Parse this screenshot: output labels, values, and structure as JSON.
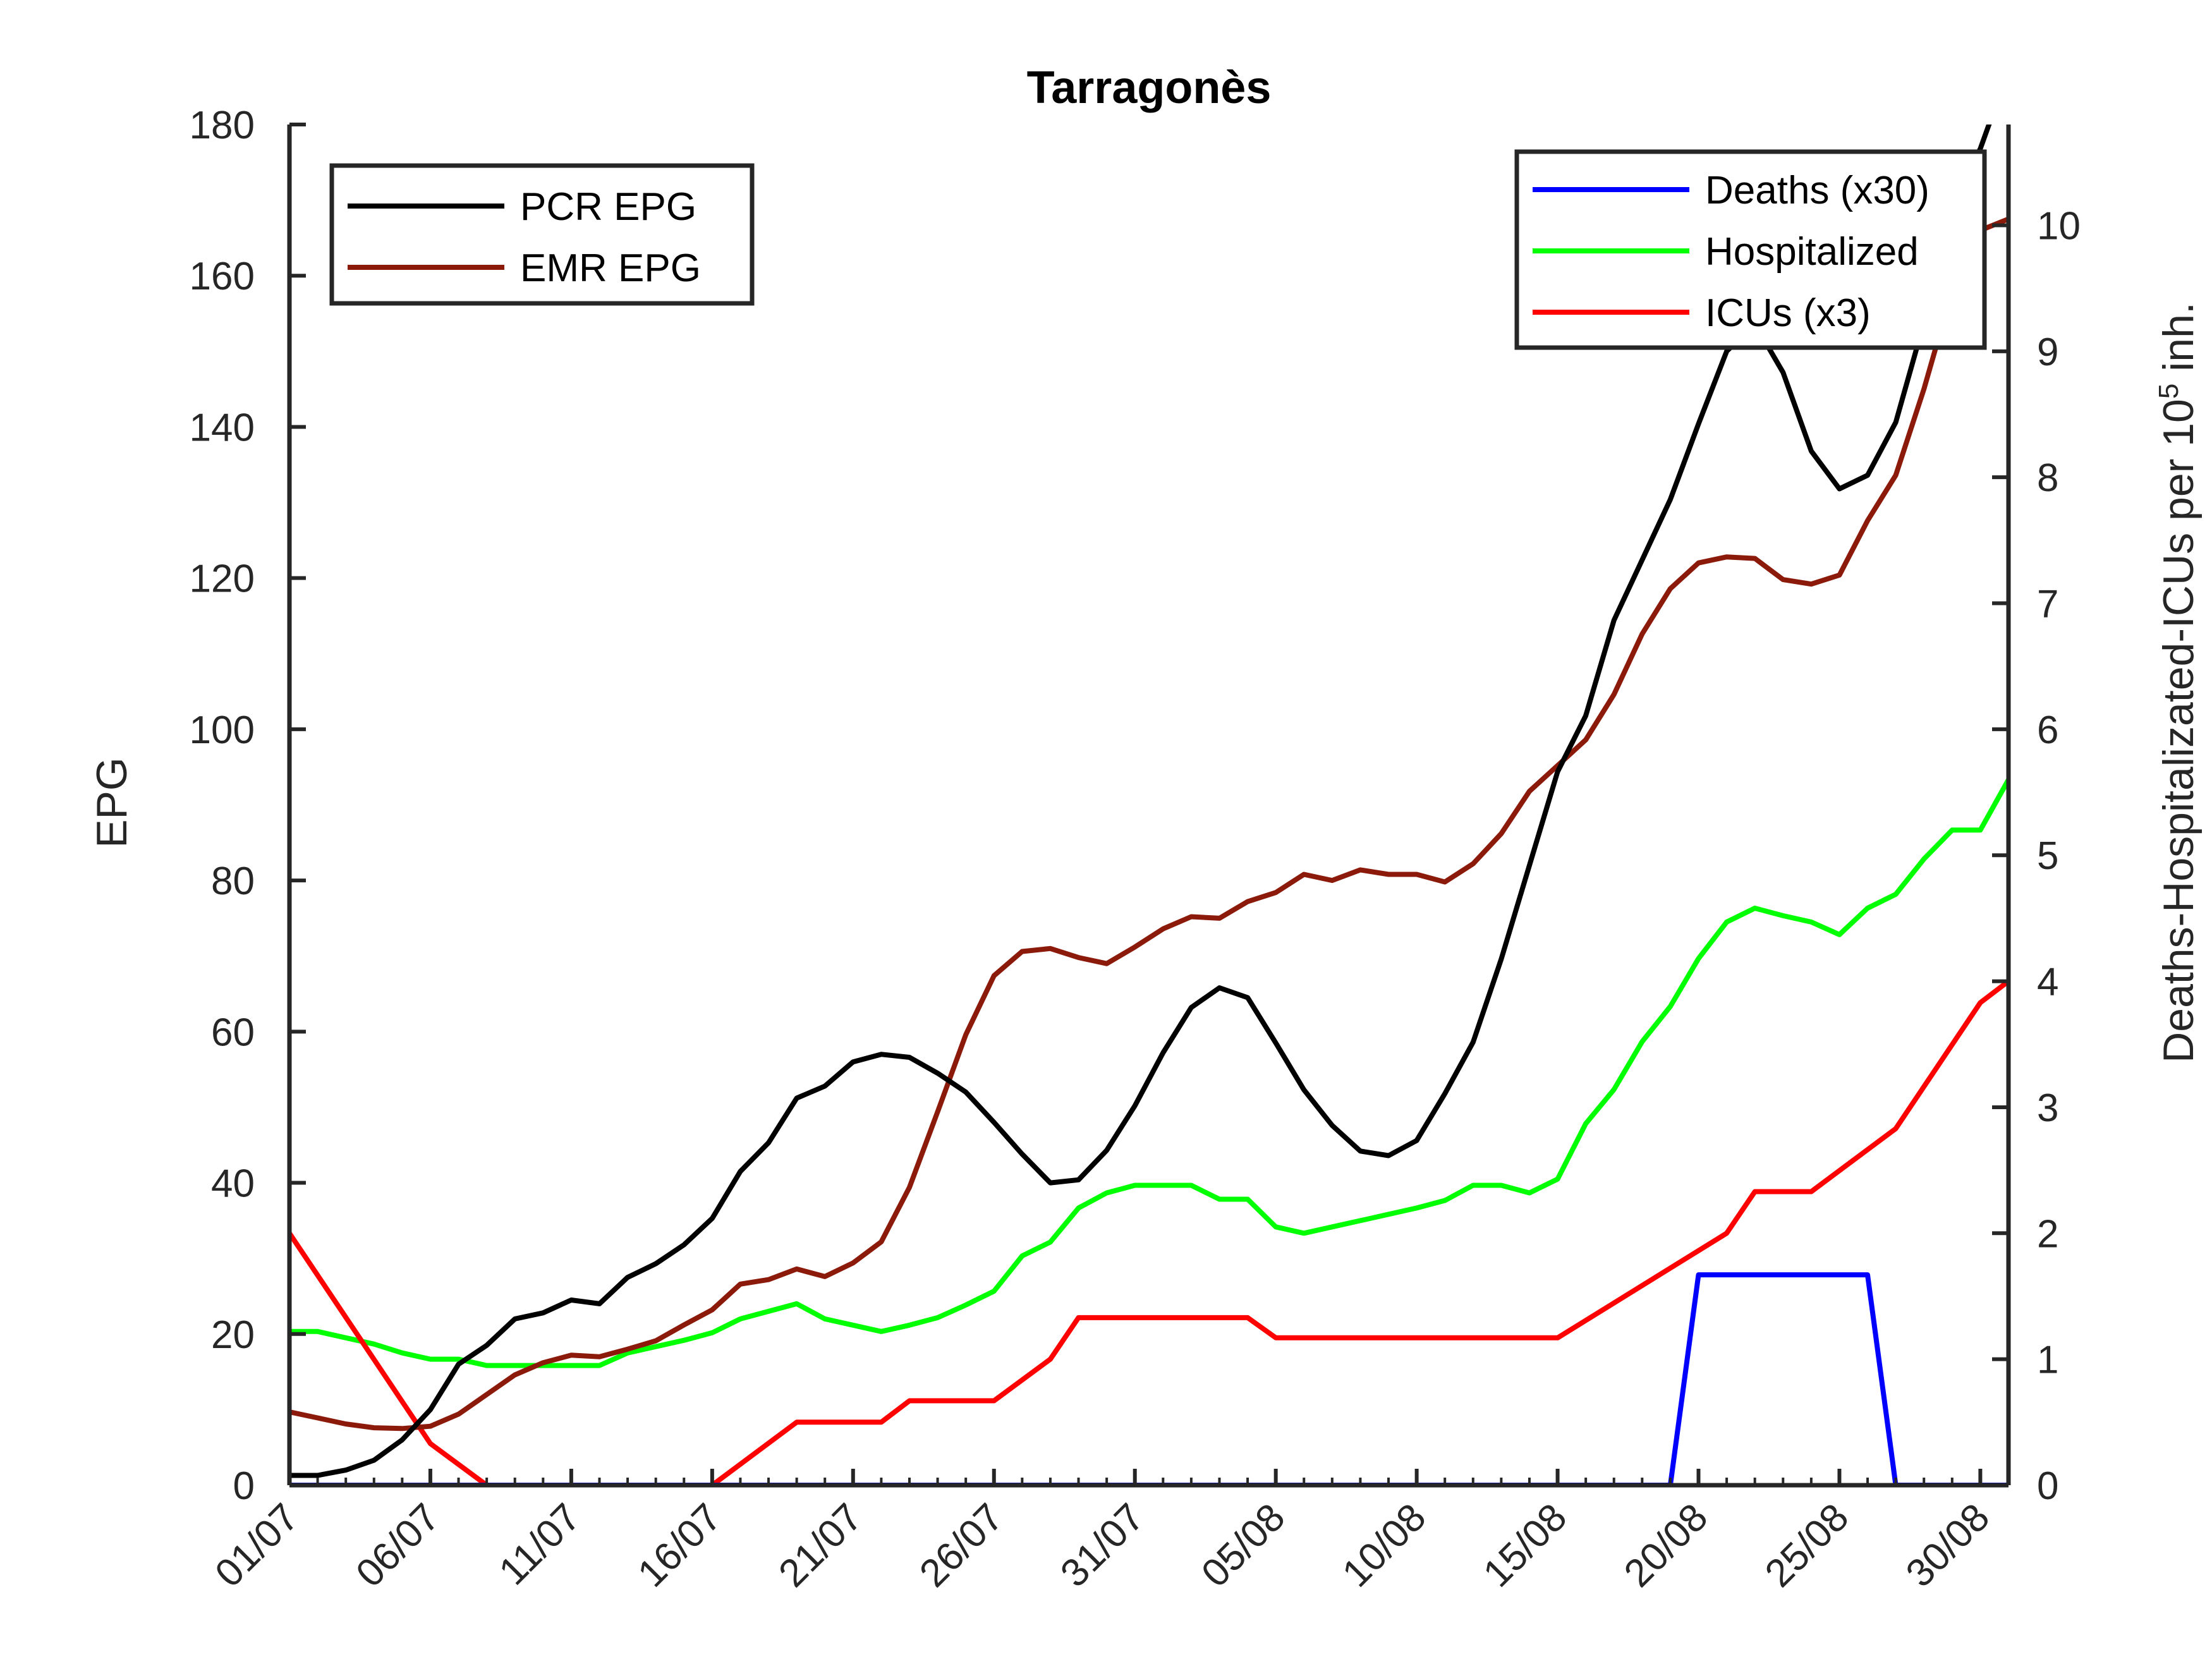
{
  "chart_data": {
    "type": "line",
    "title": "Tarragonès",
    "ylabel_left": "EPG",
    "ylabel_right_main": "Deaths-Hospitalizated-ICUs per 10",
    "ylabel_right_sup": "5",
    "ylabel_right_tail": " inh.",
    "ylim_left": [
      0,
      180
    ],
    "ylim_right": [
      0,
      10.8
    ],
    "yticks_left": [
      0,
      20,
      40,
      60,
      80,
      100,
      120,
      140,
      160,
      180
    ],
    "yticks_right": [
      0,
      1,
      2,
      3,
      4,
      5,
      6,
      7,
      8,
      9,
      10
    ],
    "xlim": [
      0,
      61
    ],
    "xticks": [
      {
        "x": 0,
        "label": "01/07"
      },
      {
        "x": 5,
        "label": "06/07"
      },
      {
        "x": 10,
        "label": "11/07"
      },
      {
        "x": 15,
        "label": "16/07"
      },
      {
        "x": 20,
        "label": "21/07"
      },
      {
        "x": 25,
        "label": "26/07"
      },
      {
        "x": 30,
        "label": "31/07"
      },
      {
        "x": 35,
        "label": "05/08"
      },
      {
        "x": 40,
        "label": "10/08"
      },
      {
        "x": 45,
        "label": "15/08"
      },
      {
        "x": 50,
        "label": "20/08"
      },
      {
        "x": 55,
        "label": "25/08"
      },
      {
        "x": 60,
        "label": "30/08"
      }
    ],
    "series": [
      {
        "name": "PCR EPG",
        "axis": "left",
        "color": "#000000",
        "points": [
          [
            0,
            1.3
          ],
          [
            1,
            1.3
          ],
          [
            2,
            2.0
          ],
          [
            3,
            3.3
          ],
          [
            4,
            6.0
          ],
          [
            5,
            10.0
          ],
          [
            6,
            16.0
          ],
          [
            7,
            18.5
          ],
          [
            8,
            22.0
          ],
          [
            9,
            22.8
          ],
          [
            10,
            24.5
          ],
          [
            11,
            24.0
          ],
          [
            12,
            27.5
          ],
          [
            13,
            29.3
          ],
          [
            14,
            31.8
          ],
          [
            15,
            35.3
          ],
          [
            16,
            41.5
          ],
          [
            17,
            45.3
          ],
          [
            18,
            51.2
          ],
          [
            19,
            52.8
          ],
          [
            20,
            56.0
          ],
          [
            21,
            57.0
          ],
          [
            22,
            56.6
          ],
          [
            23,
            54.5
          ],
          [
            24,
            52.0
          ],
          [
            25,
            48.0
          ],
          [
            26,
            43.8
          ],
          [
            27,
            40.0
          ],
          [
            28,
            40.4
          ],
          [
            29,
            44.3
          ],
          [
            30,
            50.2
          ],
          [
            31,
            57.2
          ],
          [
            32,
            63.2
          ],
          [
            33,
            65.8
          ],
          [
            34,
            64.5
          ],
          [
            35,
            58.5
          ],
          [
            36,
            52.3
          ],
          [
            37,
            47.6
          ],
          [
            38,
            44.2
          ],
          [
            39,
            43.6
          ],
          [
            40,
            45.6
          ],
          [
            41,
            51.8
          ],
          [
            42,
            58.6
          ],
          [
            43,
            69.6
          ],
          [
            44,
            82.0
          ],
          [
            45,
            94.4
          ],
          [
            46,
            101.8
          ],
          [
            47,
            114.4
          ],
          [
            48,
            122.4
          ],
          [
            49,
            130.4
          ],
          [
            50,
            140.4
          ],
          [
            51,
            150.0
          ],
          [
            52,
            153.6
          ],
          [
            53,
            147.2
          ],
          [
            54,
            136.8
          ],
          [
            55,
            131.8
          ],
          [
            56,
            133.6
          ],
          [
            57,
            140.6
          ],
          [
            58,
            153.8
          ],
          [
            59,
            169.6
          ],
          [
            60,
            176.8
          ],
          [
            60.5,
            182
          ]
        ]
      },
      {
        "name": "EMR EPG",
        "axis": "left",
        "color": "#8b1a0a",
        "points": [
          [
            0,
            9.7
          ],
          [
            1,
            8.9
          ],
          [
            2,
            8.1
          ],
          [
            3,
            7.6
          ],
          [
            4,
            7.5
          ],
          [
            5,
            7.8
          ],
          [
            6,
            9.4
          ],
          [
            7,
            12.0
          ],
          [
            8,
            14.6
          ],
          [
            9,
            16.2
          ],
          [
            10,
            17.2
          ],
          [
            11,
            17.0
          ],
          [
            12,
            18.0
          ],
          [
            13,
            19.1
          ],
          [
            14,
            21.2
          ],
          [
            15,
            23.2
          ],
          [
            16,
            26.6
          ],
          [
            17,
            27.2
          ],
          [
            18,
            28.6
          ],
          [
            19,
            27.6
          ],
          [
            20,
            29.4
          ],
          [
            21,
            32.2
          ],
          [
            22,
            39.4
          ],
          [
            23,
            49.4
          ],
          [
            24,
            59.6
          ],
          [
            25,
            67.4
          ],
          [
            26,
            70.6
          ],
          [
            27,
            71.0
          ],
          [
            28,
            69.8
          ],
          [
            29,
            69.0
          ],
          [
            30,
            71.2
          ],
          [
            31,
            73.6
          ],
          [
            32,
            75.2
          ],
          [
            33,
            75.0
          ],
          [
            34,
            77.2
          ],
          [
            35,
            78.4
          ],
          [
            36,
            80.8
          ],
          [
            37,
            80.0
          ],
          [
            38,
            81.4
          ],
          [
            39,
            80.8
          ],
          [
            40,
            80.8
          ],
          [
            41,
            79.8
          ],
          [
            42,
            82.2
          ],
          [
            43,
            86.2
          ],
          [
            44,
            91.8
          ],
          [
            45,
            95.2
          ],
          [
            46,
            98.6
          ],
          [
            47,
            104.6
          ],
          [
            48,
            112.6
          ],
          [
            49,
            118.6
          ],
          [
            50,
            122.0
          ],
          [
            51,
            122.8
          ],
          [
            52,
            122.6
          ],
          [
            53,
            119.8
          ],
          [
            54,
            119.2
          ],
          [
            55,
            120.4
          ],
          [
            56,
            127.6
          ],
          [
            57,
            133.6
          ],
          [
            58,
            145.0
          ],
          [
            59,
            158.0
          ],
          [
            60,
            166.0
          ],
          [
            61,
            167.5
          ]
        ]
      },
      {
        "name": "Deaths (x30)",
        "axis": "right",
        "color": "#0000ff",
        "points": [
          [
            0,
            0
          ],
          [
            49,
            0
          ],
          [
            50,
            1.67
          ],
          [
            56,
            1.67
          ],
          [
            57,
            0
          ],
          [
            61,
            0
          ]
        ]
      },
      {
        "name": "Hospitalized",
        "axis": "right",
        "color": "#00ff00",
        "points": [
          [
            0,
            1.22
          ],
          [
            1,
            1.22
          ],
          [
            2,
            1.17
          ],
          [
            3,
            1.12
          ],
          [
            4,
            1.05
          ],
          [
            5,
            1.0
          ],
          [
            6,
            1.0
          ],
          [
            7,
            0.95
          ],
          [
            8,
            0.95
          ],
          [
            9,
            0.95
          ],
          [
            10,
            0.95
          ],
          [
            11,
            0.95
          ],
          [
            12,
            1.05
          ],
          [
            13,
            1.1
          ],
          [
            14,
            1.15
          ],
          [
            15,
            1.21
          ],
          [
            16,
            1.32
          ],
          [
            17,
            1.38
          ],
          [
            18,
            1.44
          ],
          [
            19,
            1.32
          ],
          [
            20,
            1.27
          ],
          [
            21,
            1.22
          ],
          [
            22,
            1.27
          ],
          [
            23,
            1.33
          ],
          [
            24,
            1.43
          ],
          [
            25,
            1.54
          ],
          [
            26,
            1.82
          ],
          [
            27,
            1.93
          ],
          [
            28,
            2.2
          ],
          [
            29,
            2.32
          ],
          [
            30,
            2.38
          ],
          [
            31,
            2.38
          ],
          [
            32,
            2.38
          ],
          [
            33,
            2.27
          ],
          [
            34,
            2.27
          ],
          [
            35,
            2.05
          ],
          [
            36,
            2.0
          ],
          [
            37,
            2.05
          ],
          [
            38,
            2.1
          ],
          [
            39,
            2.15
          ],
          [
            40,
            2.2
          ],
          [
            41,
            2.26
          ],
          [
            42,
            2.38
          ],
          [
            43,
            2.38
          ],
          [
            44,
            2.32
          ],
          [
            45,
            2.43
          ],
          [
            46,
            2.87
          ],
          [
            47,
            3.14
          ],
          [
            48,
            3.52
          ],
          [
            49,
            3.8
          ],
          [
            50,
            4.18
          ],
          [
            51,
            4.47
          ],
          [
            52,
            4.58
          ],
          [
            53,
            4.52
          ],
          [
            54,
            4.47
          ],
          [
            55,
            4.37
          ],
          [
            56,
            4.58
          ],
          [
            57,
            4.69
          ],
          [
            58,
            4.97
          ],
          [
            59,
            5.2
          ],
          [
            60,
            5.2
          ],
          [
            61,
            5.6
          ]
        ]
      },
      {
        "name": "ICUs (x3)",
        "axis": "right",
        "color": "#ff0000",
        "points": [
          [
            0,
            2.0
          ],
          [
            5,
            0.33
          ],
          [
            7,
            0
          ],
          [
            15,
            0
          ],
          [
            18,
            0.5
          ],
          [
            21,
            0.5
          ],
          [
            22,
            0.67
          ],
          [
            25,
            0.67
          ],
          [
            27,
            1.0
          ],
          [
            28,
            1.33
          ],
          [
            34,
            1.33
          ],
          [
            35,
            1.17
          ],
          [
            45,
            1.17
          ],
          [
            51,
            2.0
          ],
          [
            52,
            2.33
          ],
          [
            54,
            2.33
          ],
          [
            57,
            2.83
          ],
          [
            60,
            3.83
          ],
          [
            61,
            4.0
          ]
        ]
      }
    ],
    "legend_left": [
      "PCR EPG",
      "EMR EPG"
    ],
    "legend_right": [
      "Deaths (x30)",
      "Hospitalized",
      "ICUs (x3)"
    ],
    "legend_left_position": "top-left",
    "legend_right_position": "top-right",
    "grid": false
  }
}
